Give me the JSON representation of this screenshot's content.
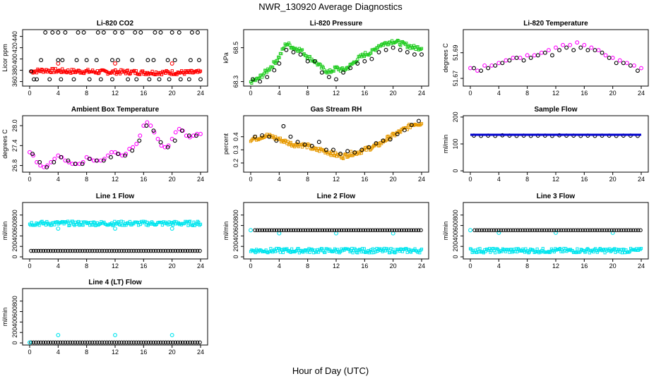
{
  "figure": {
    "title": "NWR_130920  Average Diagnostics",
    "xlabel": "Hour of Day (UTC)"
  },
  "chart_data": [
    {
      "type": "scatter",
      "title": "Li-820 CO2",
      "ylabel": "Licor ppm",
      "xlim": [
        0,
        24
      ],
      "ylim": [
        352,
        452
      ],
      "xticks": [
        0,
        4,
        8,
        12,
        16,
        20,
        24
      ],
      "yticks": [
        360,
        380,
        400,
        420,
        440
      ],
      "series": [
        {
          "color": "#ff0000",
          "marker": "dots",
          "x": [
            0.2,
            2,
            4,
            6,
            8,
            10,
            12,
            14,
            16,
            18,
            20,
            22,
            24
          ],
          "y": [
            378,
            380,
            379,
            378,
            378,
            377,
            377,
            377,
            376,
            376,
            376,
            376,
            376
          ]
        },
        {
          "color": "#ff0000",
          "marker": "circle",
          "x": [
            4,
            12,
            20
          ],
          "y": [
            392,
            392,
            392
          ]
        },
        {
          "color": "#000000",
          "marker": "circle",
          "x": [
            0.6,
            2.2,
            3.2,
            4.0,
            5.0,
            6.8,
            7.6,
            9.6,
            10.4,
            12.0,
            13.0,
            14.8,
            15.6,
            17.6,
            18.4,
            20.0,
            21.0,
            22.8,
            23.6
          ],
          "y": [
            364,
            447,
            447,
            447,
            447,
            447,
            447,
            447,
            447,
            447,
            447,
            447,
            447,
            447,
            447,
            447,
            447,
            447,
            447
          ]
        },
        {
          "color": "#000000",
          "marker": "circle",
          "x": [
            1.6,
            4.0,
            4.6,
            6.6,
            8.0,
            9.4,
            11.6,
            12.4,
            14.4,
            16.6,
            17.4,
            19.4,
            20.4,
            22.6,
            23.8
          ],
          "y": [
            398,
            398,
            398,
            398,
            398,
            398,
            398,
            398,
            398,
            398,
            398,
            398,
            398,
            398,
            398
          ]
        },
        {
          "color": "#000000",
          "marker": "circle",
          "x": [
            0.2,
            1.0,
            2.8,
            4.4,
            6.2,
            8.4,
            10.0,
            11.6,
            13.8,
            15.0,
            16.8,
            18.2,
            19.6,
            21.2,
            22.4,
            24.0
          ],
          "y": [
            378,
            364,
            364,
            364,
            364,
            364,
            364,
            364,
            364,
            364,
            364,
            364,
            364,
            364,
            364,
            364
          ]
        }
      ]
    },
    {
      "type": "scatter",
      "title": "Li-820 Pressure",
      "ylabel": "kPa",
      "xlim": [
        0,
        24
      ],
      "ylim": [
        68.33,
        68.58
      ],
      "xticks": [
        0,
        4,
        8,
        12,
        16,
        20,
        24
      ],
      "yticks": [
        68.35,
        68.5
      ],
      "series": [
        {
          "color": "#22cc22",
          "marker": "dots",
          "x": [
            0,
            1,
            2,
            3,
            4,
            5,
            6,
            7,
            8,
            9,
            10,
            11,
            12,
            13,
            14,
            15,
            16,
            17,
            18,
            19,
            20,
            21,
            22,
            23,
            24
          ],
          "y": [
            68.35,
            68.36,
            68.39,
            68.42,
            68.46,
            68.52,
            68.5,
            68.49,
            68.46,
            68.44,
            68.41,
            68.39,
            68.41,
            68.4,
            68.42,
            68.45,
            68.47,
            68.48,
            68.51,
            68.52,
            68.53,
            68.52,
            68.51,
            68.5,
            68.5
          ]
        },
        {
          "color": "#000000",
          "marker": "circle",
          "x": [
            0.3,
            1.3,
            2.3,
            3.3,
            4.0,
            5.0,
            6.0,
            7.0,
            8.0,
            9.0,
            10.0,
            11.0,
            12.0,
            13.0,
            14.0,
            15.0,
            16.0,
            17.0,
            18.0,
            19.0,
            20.0,
            21.0,
            22.0,
            23.0,
            24.0
          ],
          "y": [
            68.36,
            68.35,
            68.37,
            68.4,
            68.43,
            68.49,
            68.48,
            68.47,
            68.44,
            68.44,
            68.39,
            68.37,
            68.36,
            68.39,
            68.41,
            68.43,
            68.44,
            68.45,
            68.48,
            68.49,
            68.5,
            68.49,
            68.48,
            68.47,
            68.47
          ]
        }
      ]
    },
    {
      "type": "scatter",
      "title": "Li-820 Temperature",
      "ylabel": "degrees C",
      "xlim": [
        0,
        24
      ],
      "ylim": [
        51.672,
        51.694
      ],
      "xticks": [
        0,
        4,
        8,
        12,
        16,
        20,
        24
      ],
      "yticks": [
        51.675,
        51.685
      ],
      "series": [
        {
          "color": "#ff00ff",
          "marker": "circle",
          "x": [
            0,
            1,
            2,
            3,
            4,
            5,
            6,
            7,
            8,
            9,
            10,
            11,
            12,
            13,
            14,
            15,
            16,
            17,
            18,
            19,
            20,
            21,
            22,
            23,
            24
          ],
          "y": [
            51.679,
            51.678,
            51.68,
            51.68,
            51.681,
            51.682,
            51.683,
            51.683,
            51.684,
            51.684,
            51.685,
            51.686,
            51.687,
            51.688,
            51.688,
            51.689,
            51.688,
            51.687,
            51.686,
            51.684,
            51.683,
            51.682,
            51.681,
            51.68,
            51.679
          ]
        },
        {
          "color": "#000000",
          "marker": "circle",
          "x": [
            0.5,
            1.5,
            2.5,
            3.5,
            4.5,
            5.5,
            6.5,
            7.5,
            8.5,
            9.5,
            10.5,
            11.5,
            12.5,
            13.5,
            14.5,
            15.5,
            16.5,
            17.5,
            18.5,
            19.5,
            20.5,
            21.5,
            22.5,
            23.5
          ],
          "y": [
            51.679,
            51.678,
            51.679,
            51.68,
            51.681,
            51.682,
            51.683,
            51.682,
            51.683,
            51.684,
            51.685,
            51.684,
            51.686,
            51.687,
            51.686,
            51.687,
            51.686,
            51.686,
            51.685,
            51.683,
            51.681,
            51.681,
            51.68,
            51.678
          ]
        }
      ]
    },
    {
      "type": "scatter",
      "title": "Ambient Box Temperature",
      "ylabel": "degrees C",
      "xlim": [
        0,
        24
      ],
      "ylim": [
        26.6,
        28.3
      ],
      "xticks": [
        0,
        4,
        8,
        12,
        16,
        20,
        24
      ],
      "yticks": [
        26.8,
        27.4,
        28.0
      ],
      "series": [
        {
          "color": "#ff00ff",
          "marker": "circle",
          "x": [
            0,
            0.5,
            1,
            1.5,
            2,
            2.5,
            3,
            3.5,
            4,
            4.5,
            5,
            5.5,
            6,
            6.5,
            7,
            7.5,
            8,
            8.5,
            9,
            9.5,
            10,
            10.5,
            11,
            11.5,
            12,
            12.5,
            13,
            13.5,
            14,
            14.5,
            15,
            15.5,
            16,
            16.5,
            17,
            17.5,
            18,
            18.5,
            19,
            19.5,
            20,
            20.5,
            21,
            21.5,
            22,
            22.5,
            23,
            23.5,
            24
          ],
          "y": [
            27.2,
            27.1,
            26.9,
            26.8,
            26.75,
            26.8,
            26.9,
            27.0,
            27.1,
            27.05,
            26.95,
            26.9,
            26.85,
            26.85,
            26.85,
            26.9,
            27.05,
            27.0,
            26.95,
            26.95,
            26.95,
            27.0,
            27.1,
            27.2,
            27.2,
            27.15,
            27.1,
            27.15,
            27.3,
            27.35,
            27.45,
            27.7,
            28.0,
            28.1,
            28.0,
            27.8,
            27.6,
            27.4,
            27.35,
            27.4,
            27.6,
            27.8,
            27.9,
            27.85,
            27.7,
            27.65,
            27.7,
            27.75,
            27.75
          ]
        },
        {
          "color": "#000000",
          "marker": "circle",
          "x": [
            0.4,
            1.4,
            2.4,
            3.4,
            4.4,
            5.4,
            6.4,
            7.4,
            8.4,
            9.4,
            10.4,
            11.4,
            12.4,
            13.4,
            14.4,
            15.4,
            16.4,
            17.4,
            18.4,
            19.4,
            20.4,
            21.4,
            22.4,
            23.4
          ],
          "y": [
            27.15,
            26.9,
            26.75,
            26.9,
            27.05,
            26.95,
            26.85,
            26.85,
            27.0,
            26.95,
            26.95,
            27.05,
            27.15,
            27.1,
            27.25,
            27.55,
            28.0,
            27.85,
            27.5,
            27.35,
            27.55,
            27.85,
            27.7,
            27.7
          ]
        }
      ]
    },
    {
      "type": "scatter",
      "title": "Gas Stream RH",
      "ylabel": "percent",
      "xlim": [
        0,
        24
      ],
      "ylim": [
        0.13,
        0.56
      ],
      "xticks": [
        0,
        4,
        8,
        12,
        16,
        20,
        24
      ],
      "yticks": [
        0.2,
        0.3,
        0.4
      ],
      "series": [
        {
          "color": "#e69900",
          "marker": "dots",
          "x": [
            0,
            1,
            2,
            3,
            4,
            5,
            6,
            7,
            8,
            9,
            10,
            11,
            12,
            13,
            14,
            15,
            16,
            17,
            18,
            19,
            20,
            21,
            22,
            23,
            24
          ],
          "y": [
            0.38,
            0.39,
            0.41,
            0.4,
            0.38,
            0.36,
            0.34,
            0.34,
            0.33,
            0.3,
            0.3,
            0.28,
            0.26,
            0.25,
            0.27,
            0.28,
            0.3,
            0.32,
            0.34,
            0.38,
            0.41,
            0.44,
            0.47,
            0.5,
            0.5
          ]
        },
        {
          "color": "#000000",
          "marker": "circle",
          "x": [
            0.6,
            1.6,
            2.6,
            3.6,
            4.6,
            5.6,
            6.6,
            7.6,
            8.6,
            9.6,
            10.6,
            11.6,
            12.6,
            13.6,
            14.6,
            15.6,
            16.6,
            17.6,
            18.6,
            19.6,
            20.6,
            21.6,
            22.6,
            23.6
          ],
          "y": [
            0.4,
            0.41,
            0.4,
            0.37,
            0.48,
            0.4,
            0.36,
            0.34,
            0.33,
            0.36,
            0.3,
            0.3,
            0.27,
            0.29,
            0.28,
            0.3,
            0.32,
            0.35,
            0.37,
            0.38,
            0.42,
            0.45,
            0.49,
            0.52
          ]
        }
      ]
    },
    {
      "type": "scatter",
      "title": "Sample Flow",
      "ylabel": "ml/min",
      "xlim": [
        0,
        24
      ],
      "ylim": [
        -5,
        205
      ],
      "xticks": [
        0,
        4,
        8,
        12,
        16,
        20,
        24
      ],
      "yticks": [
        0,
        100,
        200
      ],
      "series": [
        {
          "color": "#000000",
          "marker": "circle",
          "x": [
            0.5,
            1.5,
            2.5,
            3.5,
            4.5,
            5.5,
            6.5,
            7.5,
            8.5,
            9.5,
            10.5,
            11.5,
            12.5,
            13.5,
            14.5,
            15.5,
            16.5,
            17.5,
            18.5,
            19.5,
            20.5,
            21.5,
            22.5,
            23.5
          ],
          "y": [
            131,
            130,
            131,
            130,
            132,
            131,
            130,
            131,
            130,
            131,
            131,
            130,
            132,
            131,
            131,
            130,
            131,
            130,
            131,
            131,
            130,
            131,
            131,
            130
          ]
        },
        {
          "color": "#0000cc",
          "marker": "line",
          "x": [
            0,
            24
          ],
          "y": [
            134,
            134
          ]
        }
      ]
    },
    {
      "type": "scatter",
      "title": "Line 1 Flow",
      "ylabel": "ml/min",
      "xlim": [
        0,
        24
      ],
      "ylim": [
        -40,
        1040
      ],
      "xticks": [
        0,
        4,
        8,
        12,
        16,
        20,
        24
      ],
      "yticks": [
        0,
        200,
        400,
        600,
        800
      ],
      "series": [
        {
          "color": "#00e5ee",
          "marker": "dots",
          "x": [
            0,
            24
          ],
          "y": [
            640,
            640
          ]
        },
        {
          "color": "#00e5ee",
          "marker": "circle",
          "x": [
            4,
            12,
            20
          ],
          "y": [
            540,
            540,
            540
          ]
        },
        {
          "color": "#000000",
          "marker": "circle",
          "x": [
            0.2,
            23.9
          ],
          "y": [
            115,
            115
          ],
          "dense": true
        }
      ]
    },
    {
      "type": "scatter",
      "title": "Line 2 Flow",
      "ylabel": "ml/min",
      "xlim": [
        0,
        24
      ],
      "ylim": [
        -40,
        1040
      ],
      "xticks": [
        0,
        4,
        8,
        12,
        16,
        20,
        24
      ],
      "yticks": [
        0,
        200,
        400,
        600,
        800
      ],
      "series": [
        {
          "color": "#00e5ee",
          "marker": "dots",
          "x": [
            0,
            24
          ],
          "y": [
            120,
            120
          ]
        },
        {
          "color": "#00e5ee",
          "marker": "circle",
          "x": [
            0,
            4,
            12,
            20
          ],
          "y": [
            510,
            450,
            450,
            450
          ]
        },
        {
          "color": "#000000",
          "marker": "circle",
          "x": [
            0.6,
            23.9
          ],
          "y": [
            510,
            510
          ],
          "dense": true
        }
      ]
    },
    {
      "type": "scatter",
      "title": "Line 3 Flow",
      "ylabel": "ml/min",
      "xlim": [
        0,
        24
      ],
      "ylim": [
        -40,
        1040
      ],
      "xticks": [
        0,
        4,
        8,
        12,
        16,
        20,
        24
      ],
      "yticks": [
        0,
        200,
        400,
        600,
        800
      ],
      "series": [
        {
          "color": "#00e5ee",
          "marker": "dots",
          "x": [
            0,
            24
          ],
          "y": [
            120,
            120
          ]
        },
        {
          "color": "#00e5ee",
          "marker": "circle",
          "x": [
            0,
            4,
            12,
            20
          ],
          "y": [
            510,
            460,
            460,
            460
          ]
        },
        {
          "color": "#000000",
          "marker": "circle",
          "x": [
            0.6,
            23.9
          ],
          "y": [
            510,
            510
          ],
          "dense": true
        }
      ]
    },
    {
      "type": "scatter",
      "title": "Line 4 (LT) Flow",
      "ylabel": "ml/min",
      "xlim": [
        0,
        24
      ],
      "ylim": [
        -40,
        1040
      ],
      "xticks": [
        0,
        4,
        8,
        12,
        16,
        20,
        24
      ],
      "yticks": [
        0,
        200,
        400,
        600,
        800
      ],
      "series": [
        {
          "color": "#00e5ee",
          "marker": "circle",
          "x": [
            4,
            12,
            20
          ],
          "y": [
            150,
            150,
            150
          ]
        },
        {
          "color": "#000000",
          "marker": "circle",
          "x": [
            0.2,
            23.9
          ],
          "y": [
            10,
            10
          ],
          "dense": true
        },
        {
          "color": "#00e5ee",
          "marker": "circle",
          "x": [
            0
          ],
          "y": [
            10
          ]
        }
      ]
    }
  ]
}
